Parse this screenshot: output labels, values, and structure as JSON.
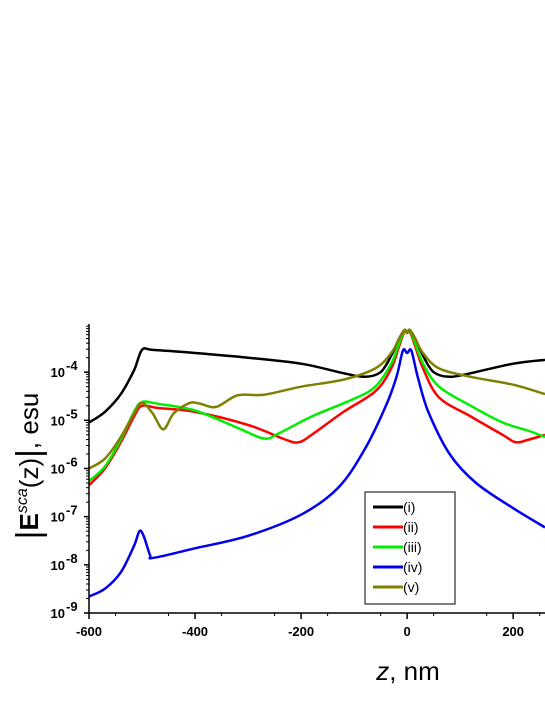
{
  "chart_data": {
    "type": "line",
    "xlabel_italic": "z",
    "xlabel_rest": ", nm",
    "ylabel_main": "E",
    "ylabel_sup": "sca",
    "ylabel_arg": "(z)",
    "ylabel_unit": ", esu",
    "xlim": [
      -600,
      260
    ],
    "ylim": [
      1e-09,
      0.001
    ],
    "yscale": "log",
    "x_ticks": [
      -600,
      -400,
      -200,
      0,
      200
    ],
    "x_tick_labels": [
      "-600",
      "-400",
      "-200",
      "0",
      "200"
    ],
    "y_ticks": [
      {
        "base": "10",
        "exp": "-9",
        "value": 1e-09
      },
      {
        "base": "10",
        "exp": "-8",
        "value": 1e-08
      },
      {
        "base": "10",
        "exp": "-7",
        "value": 1e-07
      },
      {
        "base": "10",
        "exp": "-6",
        "value": 1e-06
      },
      {
        "base": "10",
        "exp": "-5",
        "value": 1e-05
      },
      {
        "base": "10",
        "exp": "-4",
        "value": 0.0001
      }
    ],
    "grid": false,
    "legend_position": "lower-right",
    "series": [
      {
        "name": "(i)",
        "color": "#000000",
        "points": [
          [
            -600,
            9e-06
          ],
          [
            -570,
            1.5e-05
          ],
          [
            -540,
            3.5e-05
          ],
          [
            -515,
            0.00011
          ],
          [
            -500,
            0.00029
          ],
          [
            -480,
            0.00029
          ],
          [
            -400,
            0.00025
          ],
          [
            -300,
            0.0002
          ],
          [
            -200,
            0.00015
          ],
          [
            -120,
            9.5e-05
          ],
          [
            -80,
            8e-05
          ],
          [
            -50,
            0.0001
          ],
          [
            -30,
            0.00022
          ],
          [
            -15,
            0.0005
          ],
          [
            -5,
            0.00075
          ],
          [
            0,
            0.00065
          ],
          [
            5,
            0.00075
          ],
          [
            15,
            0.0005
          ],
          [
            30,
            0.00022
          ],
          [
            50,
            0.0001
          ],
          [
            80,
            8e-05
          ],
          [
            120,
            9.5e-05
          ],
          [
            200,
            0.00015
          ],
          [
            260,
            0.00018
          ]
        ]
      },
      {
        "name": "(ii)",
        "color": "#ff0000",
        "points": [
          [
            -600,
            4.5e-07
          ],
          [
            -570,
            1e-06
          ],
          [
            -540,
            3.5e-06
          ],
          [
            -515,
            1.2e-05
          ],
          [
            -500,
            2e-05
          ],
          [
            -470,
            1.8e-05
          ],
          [
            -400,
            1.5e-05
          ],
          [
            -300,
            8e-06
          ],
          [
            -230,
            4e-06
          ],
          [
            -205,
            3.5e-06
          ],
          [
            -180,
            5e-06
          ],
          [
            -120,
            1.5e-05
          ],
          [
            -60,
            4e-05
          ],
          [
            -30,
            0.00012
          ],
          [
            -15,
            0.00035
          ],
          [
            -5,
            0.0007
          ],
          [
            0,
            0.00065
          ],
          [
            5,
            0.0007
          ],
          [
            15,
            0.00035
          ],
          [
            30,
            0.00012
          ],
          [
            60,
            3e-05
          ],
          [
            120,
            1.2e-05
          ],
          [
            180,
            5e-06
          ],
          [
            205,
            3.5e-06
          ],
          [
            230,
            4e-06
          ],
          [
            260,
            5e-06
          ]
        ]
      },
      {
        "name": "(iii)",
        "color": "#00ee00",
        "points": [
          [
            -600,
            5.5e-07
          ],
          [
            -570,
            1.1e-06
          ],
          [
            -540,
            4e-06
          ],
          [
            -515,
            1.5e-05
          ],
          [
            -500,
            2.4e-05
          ],
          [
            -470,
            2.2e-05
          ],
          [
            -400,
            1.6e-05
          ],
          [
            -320,
            7e-06
          ],
          [
            -270,
            4.2e-06
          ],
          [
            -240,
            5.5e-06
          ],
          [
            -180,
            1.2e-05
          ],
          [
            -100,
            2.8e-05
          ],
          [
            -60,
            5e-05
          ],
          [
            -30,
            0.00015
          ],
          [
            -15,
            0.0004
          ],
          [
            -5,
            0.00075
          ],
          [
            0,
            0.00065
          ],
          [
            5,
            0.00075
          ],
          [
            15,
            0.0004
          ],
          [
            30,
            0.00015
          ],
          [
            60,
            5e-05
          ],
          [
            120,
            2e-05
          ],
          [
            180,
            9e-06
          ],
          [
            230,
            6e-06
          ],
          [
            260,
            4.5e-06
          ]
        ]
      },
      {
        "name": "(iv)",
        "color": "#0000ee",
        "points": [
          [
            -600,
            2.2e-09
          ],
          [
            -570,
            3.2e-09
          ],
          [
            -540,
            7e-09
          ],
          [
            -515,
            2.5e-08
          ],
          [
            -505,
            5e-08
          ],
          [
            -497,
            4e-08
          ],
          [
            -485,
            1.6e-08
          ],
          [
            -478,
            1.4e-08
          ],
          [
            -400,
            2.2e-08
          ],
          [
            -300,
            4e-08
          ],
          [
            -200,
            1.1e-07
          ],
          [
            -130,
            4e-07
          ],
          [
            -80,
            2.5e-06
          ],
          [
            -40,
            2e-05
          ],
          [
            -20,
            8e-05
          ],
          [
            -8,
            0.00028
          ],
          [
            0,
            0.00025
          ],
          [
            8,
            0.00028
          ],
          [
            20,
            8e-05
          ],
          [
            40,
            1.5e-05
          ],
          [
            80,
            2e-06
          ],
          [
            130,
            5e-07
          ],
          [
            200,
            1.5e-07
          ],
          [
            260,
            6e-08
          ]
        ]
      },
      {
        "name": "(v)",
        "color": "#808000",
        "points": [
          [
            -600,
            1e-06
          ],
          [
            -570,
            1.6e-06
          ],
          [
            -540,
            4.5e-06
          ],
          [
            -515,
            1.4e-05
          ],
          [
            -500,
            2.3e-05
          ],
          [
            -480,
            1.4e-05
          ],
          [
            -460,
            6.5e-06
          ],
          [
            -440,
            1.4e-05
          ],
          [
            -410,
            2.3e-05
          ],
          [
            -390,
            2.2e-05
          ],
          [
            -360,
            1.9e-05
          ],
          [
            -320,
            3.3e-05
          ],
          [
            -270,
            3.4e-05
          ],
          [
            -200,
            5e-05
          ],
          [
            -120,
            7e-05
          ],
          [
            -60,
            0.00012
          ],
          [
            -30,
            0.00025
          ],
          [
            -15,
            0.0005
          ],
          [
            -5,
            0.00075
          ],
          [
            0,
            0.00065
          ],
          [
            5,
            0.00075
          ],
          [
            15,
            0.0005
          ],
          [
            30,
            0.00025
          ],
          [
            60,
            0.00012
          ],
          [
            120,
            8e-05
          ],
          [
            200,
            5.5e-05
          ],
          [
            260,
            3.5e-05
          ]
        ]
      }
    ]
  }
}
